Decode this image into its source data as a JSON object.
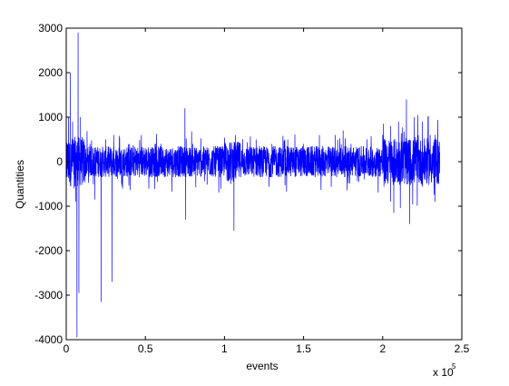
{
  "chart_data": {
    "type": "line",
    "title": "",
    "xlabel": "events",
    "ylabel": "Quantities",
    "x_multiplier_label": "x 10",
    "x_multiplier_exponent": "5",
    "xlim": [
      0,
      250000
    ],
    "ylim": [
      -4000,
      3000
    ],
    "xticks": [
      0,
      50000,
      100000,
      150000,
      200000,
      250000
    ],
    "xtick_labels": [
      "0",
      "0.5",
      "1",
      "1.5",
      "2",
      "2.5"
    ],
    "yticks": [
      -4000,
      -3000,
      -2000,
      -1000,
      0,
      1000,
      2000,
      3000
    ],
    "ytick_labels": [
      "-4000",
      "-3000",
      "-2000",
      "-1000",
      "0",
      "1000",
      "2000",
      "3000"
    ],
    "grid": false,
    "legend": "none",
    "series": [
      {
        "color": "#0000ff",
        "n_points": 236000,
        "description_points": [
          [
            0,
            -150
          ],
          [
            1500,
            1000
          ],
          [
            2500,
            2000
          ],
          [
            3000,
            -400
          ],
          [
            4000,
            900
          ],
          [
            5000,
            -600
          ],
          [
            6000,
            -900
          ],
          [
            6800,
            -3950
          ],
          [
            7500,
            2900
          ],
          [
            8000,
            -2950
          ],
          [
            9000,
            1000
          ],
          [
            10000,
            -200
          ],
          [
            15000,
            400
          ],
          [
            18000,
            -850
          ],
          [
            20000,
            300
          ],
          [
            22000,
            -3150
          ],
          [
            25000,
            500
          ],
          [
            29000,
            -2700
          ],
          [
            30000,
            600
          ],
          [
            35000,
            -500
          ],
          [
            40000,
            400
          ],
          [
            50000,
            300
          ],
          [
            60000,
            400
          ],
          [
            70000,
            -300
          ],
          [
            75000,
            1200
          ],
          [
            75500,
            -1300
          ],
          [
            80000,
            400
          ],
          [
            90000,
            300
          ],
          [
            100000,
            400
          ],
          [
            104000,
            -500
          ],
          [
            106000,
            -1550
          ],
          [
            107000,
            600
          ],
          [
            110000,
            400
          ],
          [
            120000,
            500
          ],
          [
            130000,
            400
          ],
          [
            140000,
            500
          ],
          [
            150000,
            400
          ],
          [
            160000,
            600
          ],
          [
            170000,
            600
          ],
          [
            175000,
            700
          ],
          [
            180000,
            400
          ],
          [
            190000,
            500
          ],
          [
            200000,
            600
          ],
          [
            205000,
            800
          ],
          [
            207000,
            -1150
          ],
          [
            210000,
            900
          ],
          [
            215000,
            1400
          ],
          [
            217000,
            -1400
          ],
          [
            220000,
            1000
          ],
          [
            225000,
            900
          ],
          [
            230000,
            600
          ],
          [
            233000,
            -900
          ],
          [
            236000,
            -200
          ]
        ],
        "typical_band": [
          -350,
          350
        ]
      }
    ]
  }
}
